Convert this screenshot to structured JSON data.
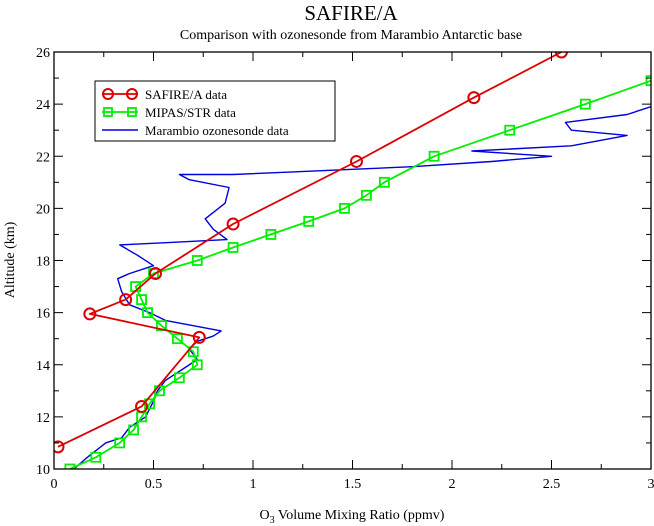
{
  "chart_data": {
    "type": "line",
    "title": "SAFIRE/A",
    "subtitle": "Comparison with ozonesonde from Marambio Antarctic base",
    "xlabel_main": "O",
    "xlabel_sub": "3",
    "xlabel_rest": " Volume Mixing Ratio (ppmv)",
    "ylabel": "Altitude (km)",
    "xlim": [
      0,
      3
    ],
    "ylim": [
      10,
      26
    ],
    "x_ticks": [
      0,
      0.5,
      1,
      1.5,
      2,
      2.5,
      3
    ],
    "x_tick_labels": [
      "0",
      "0.5",
      "1",
      "1.5",
      "2",
      "2.5",
      "3"
    ],
    "y_ticks": [
      10,
      12,
      14,
      16,
      18,
      20,
      22,
      24,
      26
    ],
    "y_tick_labels": [
      "10",
      "12",
      "14",
      "16",
      "18",
      "20",
      "22",
      "24",
      "26"
    ],
    "grid": false,
    "legend_position": "top-left",
    "series": [
      {
        "name": "SAFIRE/A data",
        "color": "#dd0000",
        "marker": "circle",
        "points": [
          [
            0.02,
            10.85
          ],
          [
            0.44,
            12.4
          ],
          [
            0.73,
            15.05
          ],
          [
            0.18,
            15.95
          ],
          [
            0.36,
            16.5
          ],
          [
            0.51,
            17.5
          ],
          [
            0.9,
            19.4
          ],
          [
            1.52,
            21.8
          ],
          [
            2.11,
            24.25
          ],
          [
            2.55,
            26.0
          ]
        ]
      },
      {
        "name": "MIPAS/STR data",
        "color": "#00ee00",
        "marker": "square",
        "points": [
          [
            0.08,
            10.0
          ],
          [
            0.21,
            10.45
          ],
          [
            0.33,
            11.0
          ],
          [
            0.4,
            11.5
          ],
          [
            0.44,
            12.0
          ],
          [
            0.48,
            12.5
          ],
          [
            0.53,
            13.0
          ],
          [
            0.63,
            13.5
          ],
          [
            0.72,
            14.0
          ],
          [
            0.7,
            14.5
          ],
          [
            0.62,
            15.0
          ],
          [
            0.54,
            15.5
          ],
          [
            0.47,
            16.0
          ],
          [
            0.44,
            16.5
          ],
          [
            0.41,
            17.0
          ],
          [
            0.5,
            17.5
          ],
          [
            0.72,
            18.0
          ],
          [
            0.9,
            18.5
          ],
          [
            1.09,
            19.0
          ],
          [
            1.28,
            19.5
          ],
          [
            1.46,
            20.0
          ],
          [
            1.57,
            20.5
          ],
          [
            1.66,
            21.0
          ],
          [
            1.91,
            22.0
          ],
          [
            2.29,
            23.0
          ],
          [
            2.67,
            24.0
          ],
          [
            3.0,
            24.9
          ]
        ]
      },
      {
        "name": "Marambio ozonesonde data",
        "color": "#0000dd",
        "marker": "none",
        "points": [
          [
            0.1,
            10.0
          ],
          [
            0.16,
            10.4
          ],
          [
            0.26,
            11.0
          ],
          [
            0.34,
            11.2
          ],
          [
            0.38,
            11.6
          ],
          [
            0.46,
            12.0
          ],
          [
            0.5,
            12.6
          ],
          [
            0.52,
            13.0
          ],
          [
            0.56,
            13.4
          ],
          [
            0.64,
            13.8
          ],
          [
            0.72,
            14.2
          ],
          [
            0.68,
            14.6
          ],
          [
            0.72,
            14.9
          ],
          [
            0.8,
            15.1
          ],
          [
            0.84,
            15.3
          ],
          [
            0.7,
            15.5
          ],
          [
            0.56,
            15.7
          ],
          [
            0.48,
            16.0
          ],
          [
            0.38,
            16.3
          ],
          [
            0.34,
            16.8
          ],
          [
            0.32,
            17.3
          ],
          [
            0.38,
            17.5
          ],
          [
            0.5,
            17.8
          ],
          [
            0.42,
            18.2
          ],
          [
            0.33,
            18.6
          ],
          [
            0.6,
            18.7
          ],
          [
            0.87,
            18.8
          ],
          [
            0.8,
            19.2
          ],
          [
            0.76,
            19.6
          ],
          [
            0.86,
            20.2
          ],
          [
            0.88,
            20.8
          ],
          [
            0.68,
            21.1
          ],
          [
            0.63,
            21.3
          ],
          [
            0.9,
            21.3
          ],
          [
            1.2,
            21.4
          ],
          [
            1.5,
            21.5
          ],
          [
            1.8,
            21.6
          ],
          [
            2.2,
            21.8
          ],
          [
            2.5,
            22.0
          ],
          [
            2.1,
            22.2
          ],
          [
            2.6,
            22.4
          ],
          [
            2.88,
            22.8
          ],
          [
            2.6,
            23.0
          ],
          [
            2.57,
            23.3
          ],
          [
            2.88,
            23.6
          ],
          [
            3.0,
            23.9
          ]
        ]
      }
    ]
  }
}
